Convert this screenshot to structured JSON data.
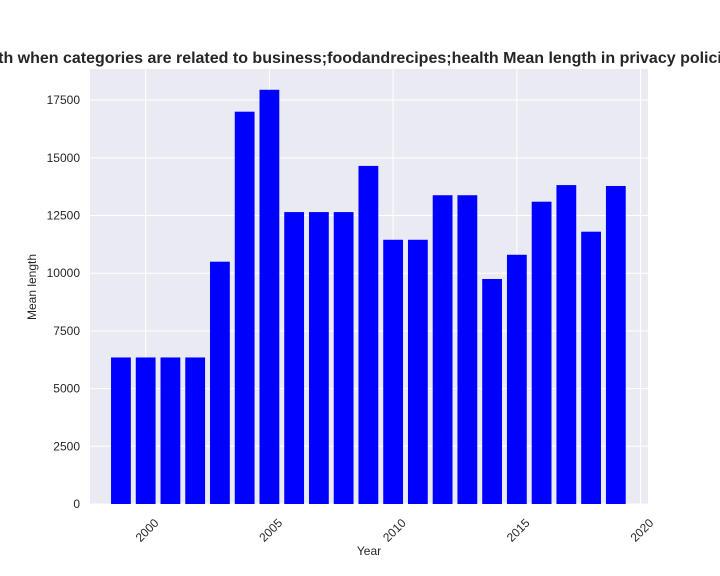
{
  "chart_data": {
    "type": "bar",
    "title": "Mean length when categories are related to business;foodandrecipes;health Mean length in privacy policies by year",
    "xlabel": "Year",
    "ylabel": "Mean length",
    "x": [
      1999,
      2000,
      2001,
      2002,
      2003,
      2004,
      2005,
      2006,
      2007,
      2008,
      2009,
      2010,
      2011,
      2012,
      2013,
      2014,
      2015,
      2016,
      2017,
      2018,
      2019
    ],
    "values": [
      6350,
      6350,
      6350,
      6350,
      10500,
      17000,
      17950,
      12650,
      12650,
      12650,
      14650,
      11450,
      11450,
      13380,
      13380,
      9750,
      10800,
      13100,
      13820,
      11800,
      13780
    ],
    "xlim": [
      1997.75,
      2020.3
    ],
    "ylim": [
      0,
      18850
    ],
    "xticks": [
      2000,
      2005,
      2010,
      2015,
      2020
    ],
    "xtick_labels": [
      "2000",
      "2005",
      "2010",
      "2015",
      "2020"
    ],
    "yticks": [
      0,
      2500,
      5000,
      7500,
      10000,
      12500,
      15000,
      17500
    ],
    "ytick_labels": [
      "0",
      "2500",
      "5000",
      "7500",
      "10000",
      "12500",
      "15000",
      "17500"
    ],
    "bar_color": "#0000ff",
    "plot_background": "#eaeaf2",
    "grid_color": "#ffffff",
    "grid": true,
    "legend": false
  }
}
